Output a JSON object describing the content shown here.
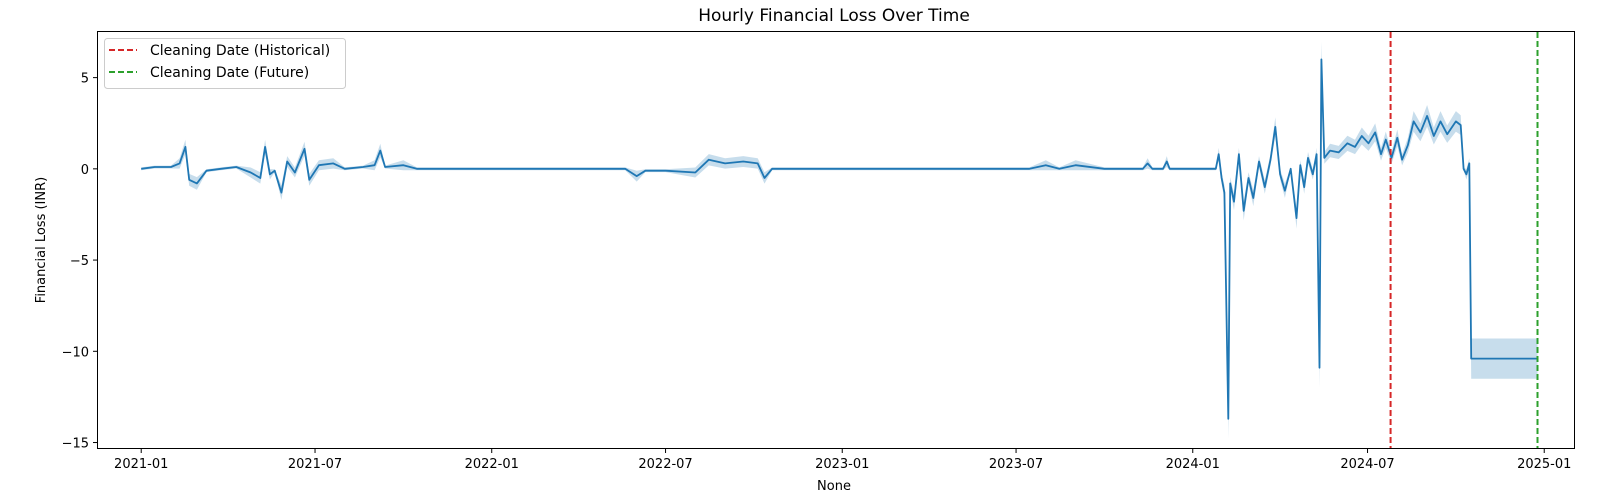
{
  "chart_data": {
    "type": "line",
    "title": "Hourly Financial Loss Over Time",
    "xlabel": "None",
    "ylabel": "Financial Loss (INR)",
    "xlim": [
      "2020-11-17",
      "2025-02-01"
    ],
    "ylim": [
      -15.3,
      7.5
    ],
    "x_ticks": [
      {
        "date": "2021-01-01",
        "label": "2021-01"
      },
      {
        "date": "2021-07-01",
        "label": "2021-07"
      },
      {
        "date": "2022-01-01",
        "label": "2022-01"
      },
      {
        "date": "2022-07-01",
        "label": "2022-07"
      },
      {
        "date": "2023-01-01",
        "label": "2023-01"
      },
      {
        "date": "2023-07-01",
        "label": "2023-07"
      },
      {
        "date": "2024-01-01",
        "label": "2024-01"
      },
      {
        "date": "2024-07-01",
        "label": "2024-07"
      },
      {
        "date": "2025-01-01",
        "label": "2025-01"
      }
    ],
    "y_ticks": [
      {
        "value": 5,
        "label": "5"
      },
      {
        "value": 0,
        "label": "0"
      },
      {
        "value": -5,
        "label": "−5"
      },
      {
        "value": -10,
        "label": "−10"
      },
      {
        "value": -15,
        "label": "−15"
      }
    ],
    "grid": false,
    "legend_position": "top-left",
    "series": [
      {
        "color": "#1f77b4",
        "band_color": "#1f77b4",
        "points": [
          [
            "2021-01-01",
            0.0
          ],
          [
            "2021-01-15",
            0.1
          ],
          [
            "2021-02-01",
            0.1
          ],
          [
            "2021-02-10",
            0.3
          ],
          [
            "2021-02-16",
            1.2
          ],
          [
            "2021-02-20",
            -0.6
          ],
          [
            "2021-02-28",
            -0.8
          ],
          [
            "2021-03-10",
            -0.1
          ],
          [
            "2021-03-25",
            0.0
          ],
          [
            "2021-04-10",
            0.1
          ],
          [
            "2021-04-25",
            -0.2
          ],
          [
            "2021-05-05",
            -0.5
          ],
          [
            "2021-05-10",
            1.2
          ],
          [
            "2021-05-15",
            -0.3
          ],
          [
            "2021-05-20",
            -0.1
          ],
          [
            "2021-05-27",
            -1.3
          ],
          [
            "2021-06-02",
            0.4
          ],
          [
            "2021-06-10",
            -0.2
          ],
          [
            "2021-06-20",
            1.1
          ],
          [
            "2021-06-25",
            -0.6
          ],
          [
            "2021-07-05",
            0.2
          ],
          [
            "2021-07-20",
            0.3
          ],
          [
            "2021-08-01",
            0.0
          ],
          [
            "2021-08-20",
            0.1
          ],
          [
            "2021-09-01",
            0.2
          ],
          [
            "2021-09-07",
            1.0
          ],
          [
            "2021-09-12",
            0.1
          ],
          [
            "2021-10-01",
            0.2
          ],
          [
            "2021-10-15",
            0.0
          ],
          [
            "2021-12-01",
            0.0
          ],
          [
            "2022-02-01",
            0.0
          ],
          [
            "2022-04-01",
            0.0
          ],
          [
            "2022-05-20",
            0.0
          ],
          [
            "2022-06-01",
            -0.4
          ],
          [
            "2022-06-10",
            -0.1
          ],
          [
            "2022-07-01",
            -0.1
          ],
          [
            "2022-08-01",
            -0.2
          ],
          [
            "2022-08-15",
            0.5
          ],
          [
            "2022-09-01",
            0.3
          ],
          [
            "2022-09-20",
            0.4
          ],
          [
            "2022-10-05",
            0.3
          ],
          [
            "2022-10-12",
            -0.5
          ],
          [
            "2022-10-20",
            0.0
          ],
          [
            "2022-11-15",
            0.0
          ],
          [
            "2023-03-01",
            0.0
          ],
          [
            "2023-06-01",
            0.0
          ],
          [
            "2023-07-15",
            0.0
          ],
          [
            "2023-08-01",
            0.2
          ],
          [
            "2023-08-15",
            0.0
          ],
          [
            "2023-09-01",
            0.2
          ],
          [
            "2023-10-01",
            0.0
          ],
          [
            "2023-11-10",
            0.0
          ],
          [
            "2023-11-15",
            0.3
          ],
          [
            "2023-11-20",
            0.0
          ],
          [
            "2023-12-01",
            0.0
          ],
          [
            "2023-12-05",
            0.4
          ],
          [
            "2023-12-08",
            0.0
          ],
          [
            "2024-01-25",
            0.0
          ],
          [
            "2024-01-28",
            0.8
          ],
          [
            "2024-01-31",
            -0.5
          ],
          [
            "2024-02-03",
            -1.3
          ],
          [
            "2024-02-07",
            -13.7
          ],
          [
            "2024-02-09",
            -0.8
          ],
          [
            "2024-02-13",
            -1.8
          ],
          [
            "2024-02-18",
            0.8
          ],
          [
            "2024-02-23",
            -2.3
          ],
          [
            "2024-02-28",
            -0.5
          ],
          [
            "2024-03-04",
            -1.6
          ],
          [
            "2024-03-10",
            0.4
          ],
          [
            "2024-03-16",
            -1.0
          ],
          [
            "2024-03-22",
            0.5
          ],
          [
            "2024-03-27",
            2.3
          ],
          [
            "2024-04-01",
            -0.3
          ],
          [
            "2024-04-06",
            -1.2
          ],
          [
            "2024-04-12",
            0.0
          ],
          [
            "2024-04-18",
            -2.7
          ],
          [
            "2024-04-22",
            0.2
          ],
          [
            "2024-04-26",
            -1.0
          ],
          [
            "2024-04-30",
            0.6
          ],
          [
            "2024-05-05",
            -0.3
          ],
          [
            "2024-05-09",
            0.8
          ],
          [
            "2024-05-12",
            -10.9
          ],
          [
            "2024-05-14",
            6.0
          ],
          [
            "2024-05-17",
            0.6
          ],
          [
            "2024-05-23",
            1.0
          ],
          [
            "2024-06-01",
            0.9
          ],
          [
            "2024-06-10",
            1.4
          ],
          [
            "2024-06-18",
            1.2
          ],
          [
            "2024-06-25",
            1.8
          ],
          [
            "2024-07-02",
            1.4
          ],
          [
            "2024-07-09",
            2.0
          ],
          [
            "2024-07-15",
            0.8
          ],
          [
            "2024-07-20",
            1.6
          ],
          [
            "2024-07-26",
            0.6
          ],
          [
            "2024-08-01",
            1.7
          ],
          [
            "2024-08-06",
            0.5
          ],
          [
            "2024-08-12",
            1.3
          ],
          [
            "2024-08-18",
            2.6
          ],
          [
            "2024-08-25",
            2.0
          ],
          [
            "2024-09-01",
            2.9
          ],
          [
            "2024-09-08",
            1.8
          ],
          [
            "2024-09-15",
            2.6
          ],
          [
            "2024-09-22",
            1.9
          ],
          [
            "2024-10-01",
            2.6
          ],
          [
            "2024-10-06",
            2.4
          ],
          [
            "2024-10-09",
            0.0
          ],
          [
            "2024-10-12",
            -0.3
          ],
          [
            "2024-10-15",
            0.3
          ],
          [
            "2024-10-17",
            -10.4
          ],
          [
            "2024-12-25",
            -10.4
          ]
        ]
      }
    ],
    "vlines": [
      {
        "date": "2024-07-25",
        "color": "#d62728",
        "label": "Cleaning Date (Historical)"
      },
      {
        "date": "2024-12-25",
        "color": "#2ca02c",
        "label": "Cleaning Date (Future)"
      }
    ]
  }
}
